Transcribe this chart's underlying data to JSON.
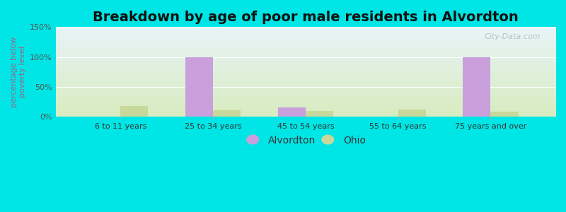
{
  "title": "Breakdown by age of poor male residents in Alvordton",
  "ylabel": "percentage below\npoverty level",
  "categories": [
    "6 to 11 years",
    "25 to 34 years",
    "45 to 54 years",
    "55 to 64 years",
    "75 years and over"
  ],
  "alvordton_values": [
    0,
    100,
    15,
    0,
    100
  ],
  "ohio_values": [
    18,
    10,
    9,
    12,
    8
  ],
  "alvordton_color": "#c9a0dc",
  "ohio_color": "#c8d89a",
  "background_outer": "#00e5e5",
  "background_plot_topleft": "#e8f4f8",
  "background_plot_bottomright": "#d8ecc0",
  "ylim": [
    0,
    150
  ],
  "yticks": [
    0,
    50,
    100,
    150
  ],
  "ytick_labels": [
    "0%",
    "50%",
    "100%",
    "150%"
  ],
  "bar_width": 0.3,
  "legend_labels": [
    "Alvordton",
    "Ohio"
  ],
  "title_fontsize": 14,
  "axis_label_fontsize": 8,
  "tick_fontsize": 8,
  "grid_color": "#ffffff",
  "ylabel_color": "#996688",
  "watermark": "City-Data.com"
}
